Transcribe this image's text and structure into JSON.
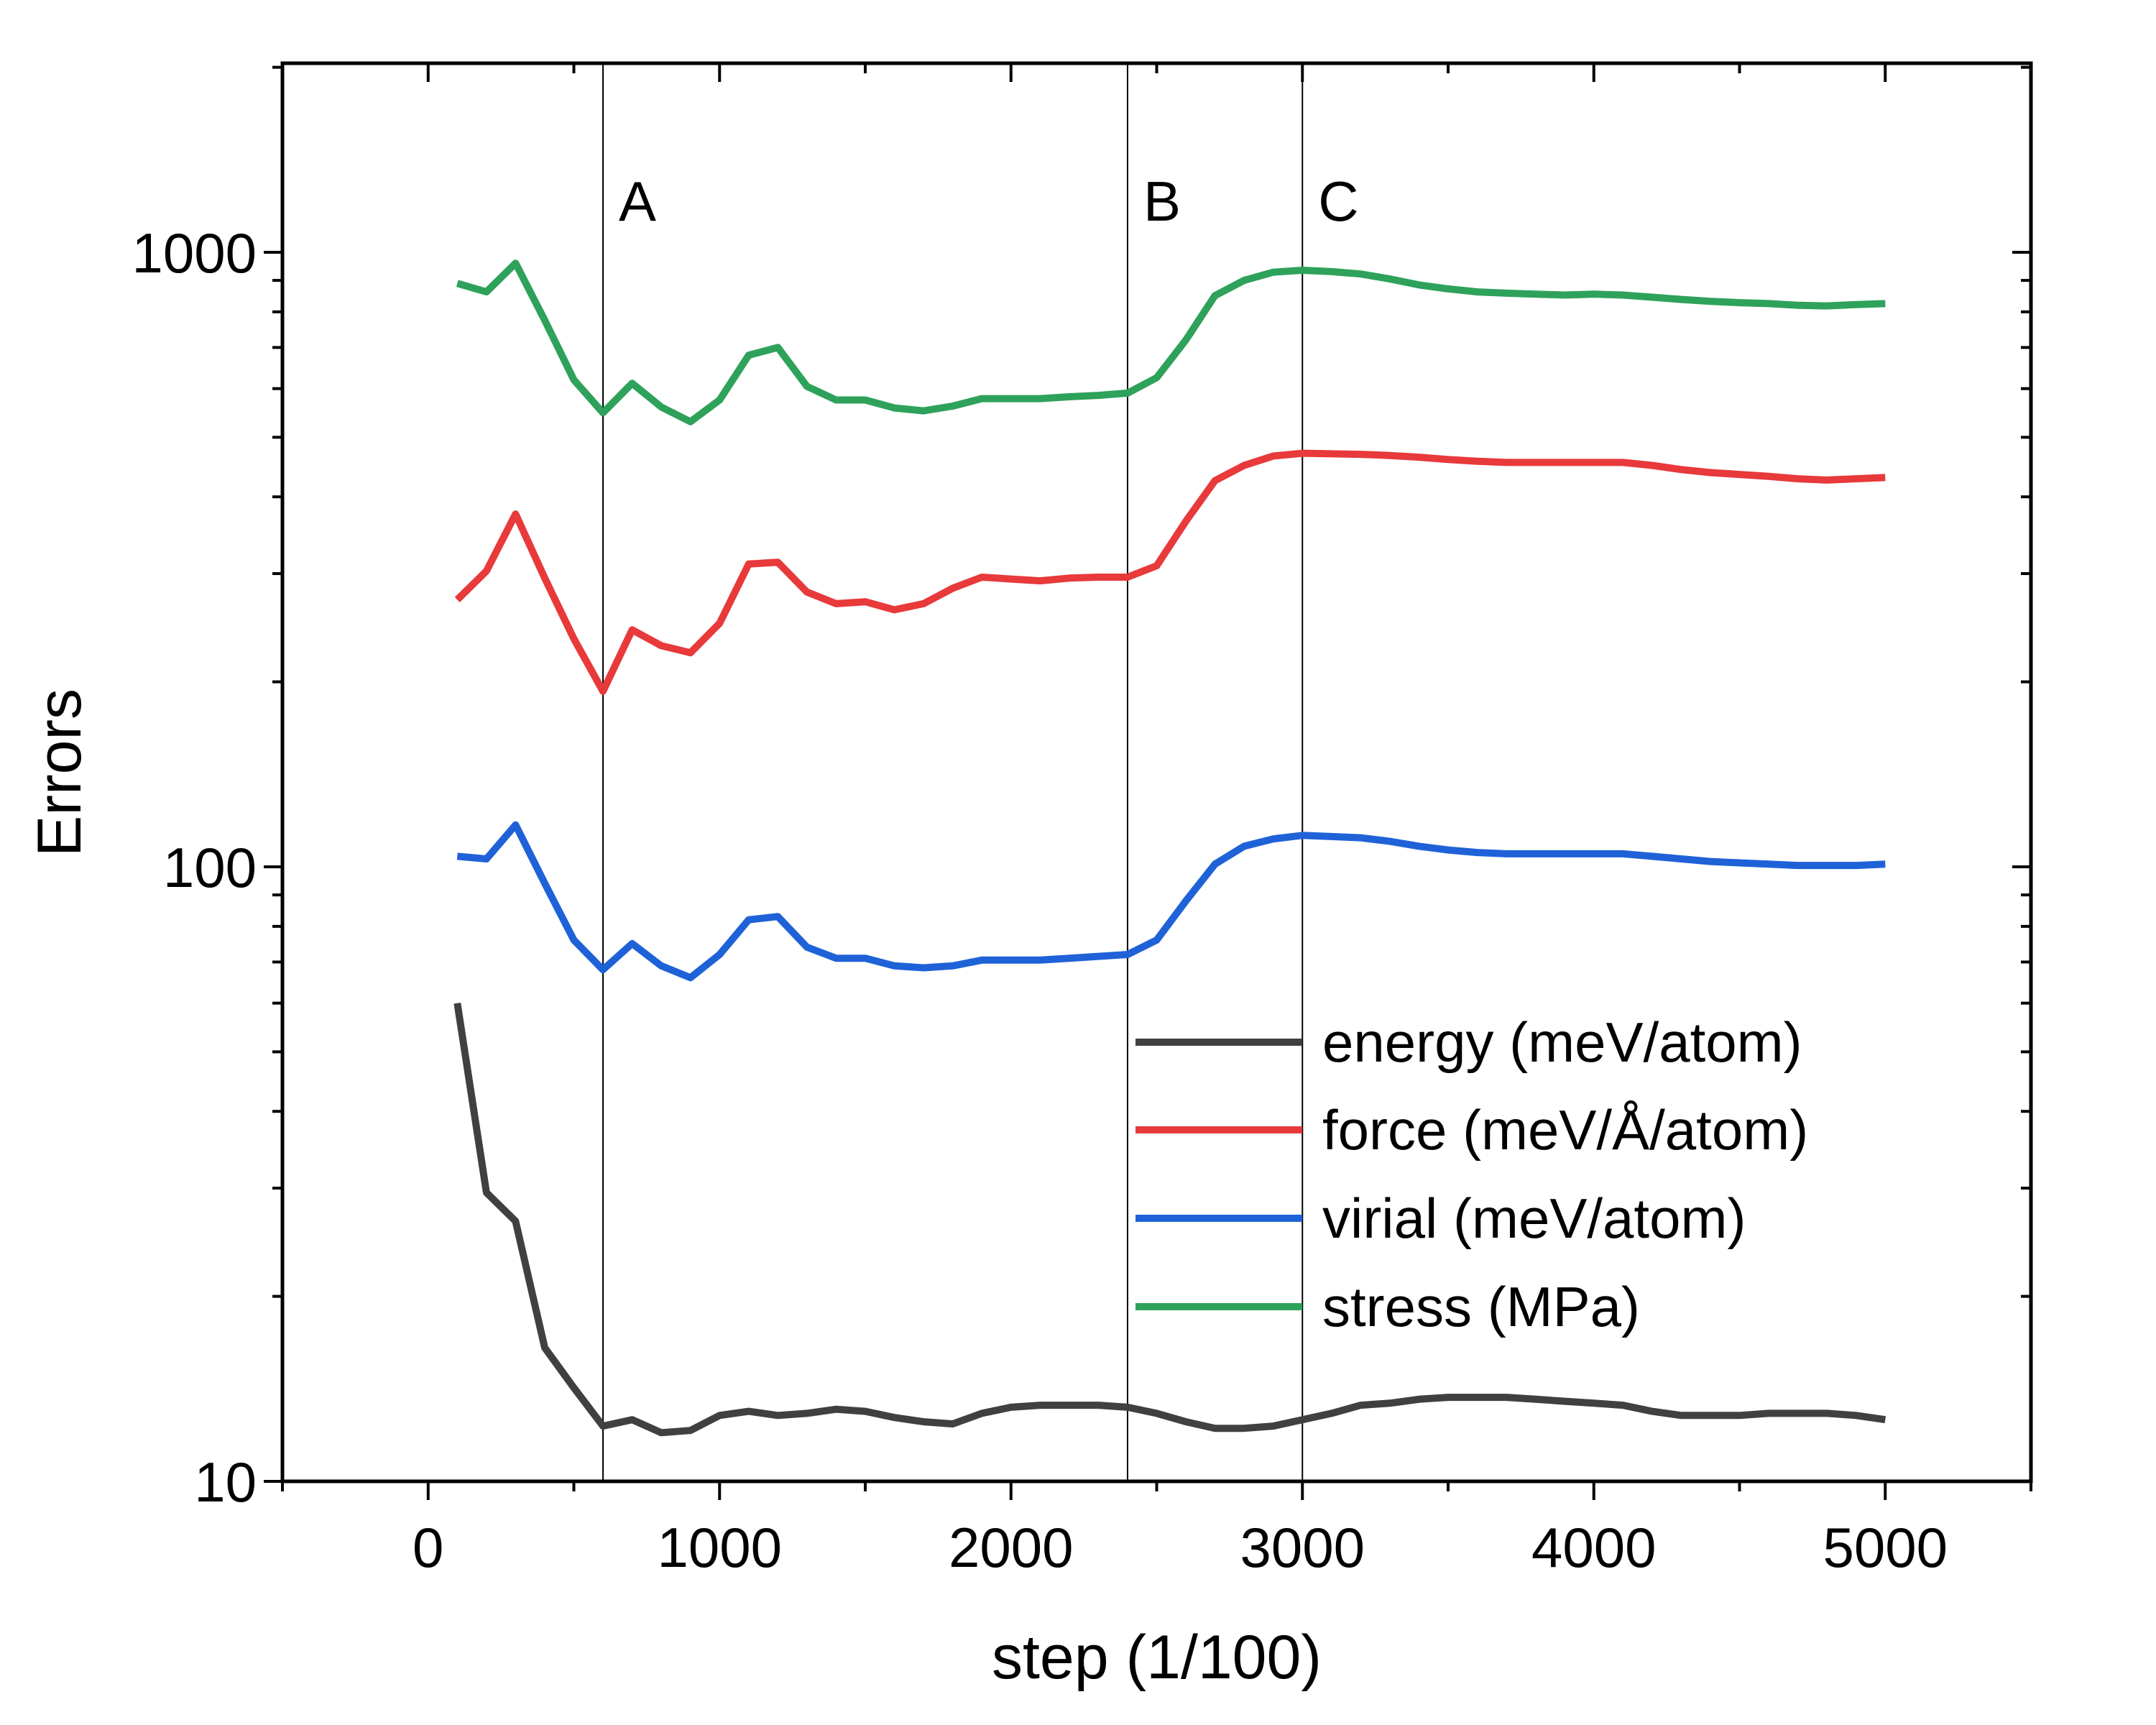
{
  "chart_data": {
    "type": "line",
    "xlabel": "step (1/100)",
    "ylabel": "Errors",
    "xlim": [
      -500,
      5500
    ],
    "ylim": [
      10,
      2000
    ],
    "yscale": "log",
    "x_ticks": [
      0,
      1000,
      2000,
      3000,
      4000,
      5000
    ],
    "x_tick_labels": [
      "0",
      "1000",
      "2000",
      "3000",
      "4000",
      "5000"
    ],
    "y_ticks": [
      10,
      100,
      1000
    ],
    "y_tick_labels": [
      "10",
      "100",
      "1000"
    ],
    "grid": false,
    "legend_position": "lower-right",
    "vertical_markers": [
      {
        "label": "A",
        "x": 600
      },
      {
        "label": "B",
        "x": 2400
      },
      {
        "label": "C",
        "x": 3000
      }
    ],
    "x": [
      100,
      200,
      300,
      400,
      500,
      600,
      700,
      800,
      900,
      1000,
      1100,
      1200,
      1300,
      1400,
      1500,
      1600,
      1700,
      1800,
      1900,
      2000,
      2100,
      2200,
      2300,
      2400,
      2500,
      2600,
      2700,
      2800,
      2900,
      3000,
      3100,
      3200,
      3300,
      3400,
      3500,
      3600,
      3700,
      3800,
      3900,
      4000,
      4100,
      4200,
      4300,
      4400,
      4500,
      4600,
      4700,
      4800,
      4900,
      5000
    ],
    "series": [
      {
        "name": "energy (meV/atom)",
        "color": "#404040",
        "values": [
          60,
          29.5,
          26.5,
          16.5,
          14.2,
          12.3,
          12.6,
          12.0,
          12.1,
          12.8,
          13.0,
          12.8,
          12.9,
          13.1,
          13.0,
          12.7,
          12.5,
          12.4,
          12.9,
          13.2,
          13.3,
          13.3,
          13.3,
          13.2,
          12.9,
          12.5,
          12.2,
          12.2,
          12.3,
          12.6,
          12.9,
          13.3,
          13.4,
          13.6,
          13.7,
          13.7,
          13.7,
          13.6,
          13.5,
          13.4,
          13.3,
          13.0,
          12.8,
          12.8,
          12.8,
          12.9,
          12.9,
          12.9,
          12.8,
          12.6
        ]
      },
      {
        "name": "force (meV/Å/atom)",
        "color": "#e8393b",
        "values": [
          272,
          303,
          375,
          295,
          235,
          193,
          243,
          229,
          223,
          249,
          311,
          313,
          280,
          268,
          270,
          262,
          268,
          284,
          296,
          294,
          292,
          295,
          296,
          296,
          309,
          365,
          425,
          450,
          466,
          471,
          470,
          469,
          467,
          464,
          460,
          457,
          455,
          455,
          455,
          455,
          455,
          450,
          443,
          438,
          435,
          432,
          428,
          426,
          428,
          430
        ]
      },
      {
        "name": "virial (meV/atom)",
        "color": "#1f62d8",
        "values": [
          104,
          103,
          117,
          94,
          76,
          68,
          75,
          69,
          66,
          72,
          82,
          83,
          74,
          71,
          71,
          69,
          68.5,
          69,
          70.5,
          70.5,
          70.5,
          71,
          71.5,
          72,
          76,
          88,
          101,
          108,
          111,
          112.5,
          112,
          111.5,
          110,
          108,
          106.5,
          105.5,
          105,
          105,
          105,
          105,
          105,
          104,
          103,
          102,
          101.5,
          101,
          100.5,
          100.5,
          100.5,
          101
        ]
      },
      {
        "name": "stress (MPa)",
        "color": "#2ea25a",
        "values": [
          890,
          862,
          960,
          775,
          620,
          548,
          612,
          560,
          530,
          575,
          680,
          700,
          605,
          575,
          575,
          558,
          552,
          562,
          578,
          578,
          578,
          582,
          585,
          590,
          625,
          720,
          850,
          900,
          928,
          935,
          930,
          922,
          905,
          885,
          872,
          862,
          858,
          855,
          852,
          855,
          852,
          845,
          838,
          832,
          828,
          825,
          820,
          818,
          822,
          825
        ]
      }
    ]
  }
}
